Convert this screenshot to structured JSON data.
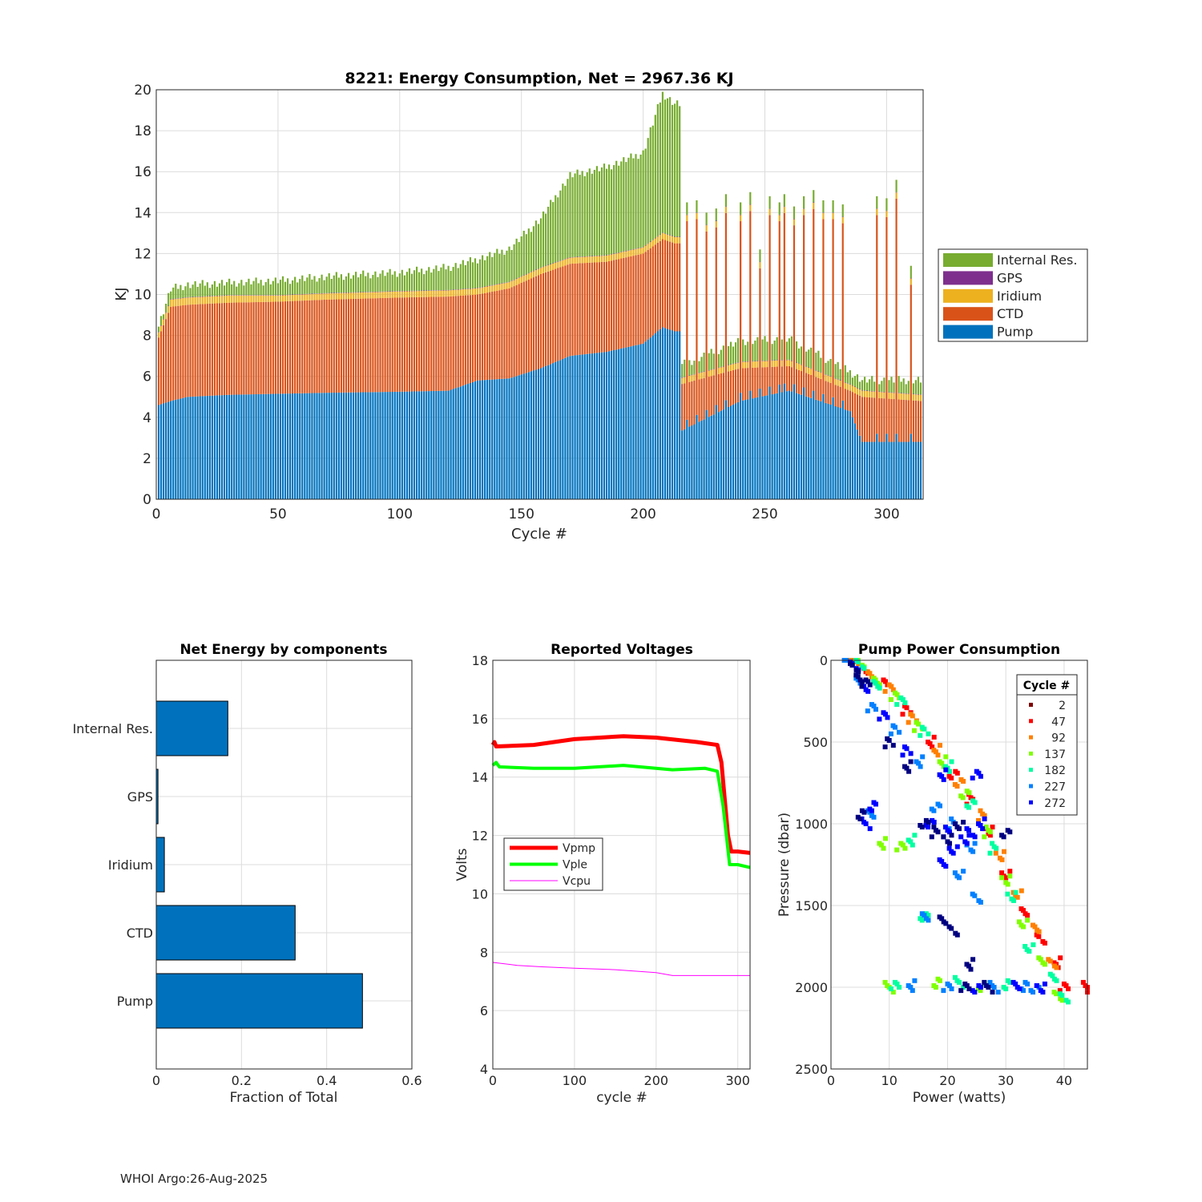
{
  "footer": "WHOI Argo:26-Aug-2025",
  "chart_data": [
    {
      "id": "energy",
      "type": "bar",
      "stacked": true,
      "title": "8221: Energy Consumption,  Net = 2967.36 KJ",
      "xlabel": "Cycle #",
      "ylabel": "KJ",
      "xlim": [
        0,
        315
      ],
      "ylim": [
        0,
        20
      ],
      "xticks": [
        0,
        50,
        100,
        150,
        200,
        250,
        300
      ],
      "yticks": [
        0,
        2,
        4,
        6,
        8,
        10,
        12,
        14,
        16,
        18,
        20
      ],
      "grid": true,
      "legend_position": "outside-right",
      "legend": [
        "Internal Res.",
        "GPS",
        "Iridium",
        "CTD",
        "Pump"
      ],
      "colors": {
        "Pump": "#0072BD",
        "CTD": "#D95319",
        "Iridium": "#EDB120",
        "GPS": "#7E2F8E",
        "Internal Res.": "#77AC30"
      },
      "stack_order": [
        "Pump",
        "CTD",
        "Iridium",
        "GPS",
        "Internal Res."
      ],
      "profile_points": [
        {
          "cycle": 1,
          "Pump": 4.6,
          "CTD": 3.3,
          "Iridium": 0.25,
          "GPS": 0.02,
          "Internal": 0.3
        },
        {
          "cycle": 6,
          "Pump": 4.8,
          "CTD": 4.6,
          "Iridium": 0.35,
          "GPS": 0.02,
          "Internal": 0.5
        },
        {
          "cycle": 13,
          "Pump": 5.0,
          "CTD": 4.5,
          "Iridium": 0.35,
          "GPS": 0.02,
          "Internal": 0.6
        },
        {
          "cycle": 30,
          "Pump": 5.1,
          "CTD": 4.5,
          "Iridium": 0.35,
          "GPS": 0.02,
          "Internal": 0.6
        },
        {
          "cycle": 50,
          "Pump": 5.15,
          "CTD": 4.5,
          "Iridium": 0.3,
          "GPS": 0.02,
          "Internal": 0.7
        },
        {
          "cycle": 70,
          "Pump": 5.2,
          "CTD": 4.55,
          "Iridium": 0.3,
          "GPS": 0.02,
          "Internal": 0.8
        },
        {
          "cycle": 100,
          "Pump": 5.25,
          "CTD": 4.6,
          "Iridium": 0.3,
          "GPS": 0.02,
          "Internal": 0.9
        },
        {
          "cycle": 120,
          "Pump": 5.3,
          "CTD": 4.6,
          "Iridium": 0.3,
          "GPS": 0.02,
          "Internal": 1.1
        },
        {
          "cycle": 132,
          "Pump": 5.8,
          "CTD": 4.2,
          "Iridium": 0.3,
          "GPS": 0.02,
          "Internal": 1.4
        },
        {
          "cycle": 145,
          "Pump": 5.9,
          "CTD": 4.4,
          "Iridium": 0.3,
          "GPS": 0.02,
          "Internal": 1.6
        },
        {
          "cycle": 158,
          "Pump": 6.4,
          "CTD": 4.6,
          "Iridium": 0.3,
          "GPS": 0.02,
          "Internal": 2.4
        },
        {
          "cycle": 170,
          "Pump": 7.0,
          "CTD": 4.5,
          "Iridium": 0.3,
          "GPS": 0.02,
          "Internal": 4.0
        },
        {
          "cycle": 185,
          "Pump": 7.2,
          "CTD": 4.4,
          "Iridium": 0.3,
          "GPS": 0.02,
          "Internal": 4.3
        },
        {
          "cycle": 200,
          "Pump": 7.6,
          "CTD": 4.4,
          "Iridium": 0.3,
          "GPS": 0.02,
          "Internal": 4.6
        },
        {
          "cycle": 208,
          "Pump": 8.4,
          "CTD": 4.3,
          "Iridium": 0.3,
          "GPS": 0.02,
          "Internal": 6.8
        },
        {
          "cycle": 213,
          "Pump": 8.2,
          "CTD": 4.3,
          "Iridium": 0.3,
          "GPS": 0.02,
          "Internal": 6.5
        },
        {
          "cycle": 215,
          "Pump": 3.3,
          "CTD": 2.3,
          "Iridium": 0.3,
          "GPS": 0.02,
          "Internal": 0.6
        },
        {
          "cycle": 240,
          "Pump": 4.8,
          "CTD": 1.6,
          "Iridium": 0.3,
          "GPS": 0.02,
          "Internal": 1.0
        },
        {
          "cycle": 260,
          "Pump": 5.3,
          "CTD": 1.2,
          "Iridium": 0.3,
          "GPS": 0.02,
          "Internal": 1.0
        },
        {
          "cycle": 285,
          "Pump": 4.3,
          "CTD": 1.0,
          "Iridium": 0.3,
          "GPS": 0.02,
          "Internal": 0.6
        },
        {
          "cycle": 290,
          "Pump": 2.8,
          "CTD": 2.2,
          "Iridium": 0.3,
          "GPS": 0.02,
          "Internal": 0.5
        },
        {
          "cycle": 314,
          "Pump": 2.8,
          "CTD": 2.0,
          "Iridium": 0.3,
          "GPS": 0.02,
          "Internal": 0.7
        }
      ],
      "long_profile_cycles": [
        218,
        222,
        226,
        230,
        234,
        240,
        244,
        248,
        252,
        256,
        258,
        262,
        266,
        270,
        274,
        278,
        282,
        296,
        300,
        304,
        310
      ],
      "long_profile_totals": [
        14.5,
        14.6,
        14.0,
        14.2,
        14.9,
        14.5,
        15.0,
        12.2,
        14.8,
        14.5,
        14.9,
        14.3,
        14.8,
        15.1,
        14.6,
        14.6,
        14.4,
        14.8,
        14.7,
        15.6,
        11.4
      ]
    },
    {
      "id": "components",
      "type": "barh",
      "title": "Net Energy by components",
      "xlabel": "Fraction of Total",
      "xlim": [
        0,
        0.6
      ],
      "xticks": [
        0,
        0.2,
        0.4,
        0.6
      ],
      "xticklabels": [
        "0",
        "0.2",
        "0.4",
        "0.6"
      ],
      "categories": [
        "Internal Res.",
        "GPS",
        "Iridium",
        "CTD",
        "Pump"
      ],
      "values": [
        0.168,
        0.004,
        0.019,
        0.326,
        0.484
      ],
      "color": "#0072BD",
      "grid": true
    },
    {
      "id": "voltages",
      "type": "line",
      "title": "Reported Voltages",
      "xlabel": "cycle #",
      "ylabel": "Volts",
      "xlim": [
        0,
        315
      ],
      "ylim": [
        4,
        18
      ],
      "xticks": [
        0,
        100,
        200,
        300
      ],
      "yticks": [
        4,
        6,
        8,
        10,
        12,
        14,
        16,
        18
      ],
      "grid": true,
      "legend_position": "middle-left",
      "series": [
        {
          "name": "Vpmp",
          "color": "#FF0000",
          "width": 5,
          "x": [
            0,
            2,
            4,
            50,
            100,
            160,
            200,
            250,
            275,
            280,
            288,
            292,
            300,
            315
          ],
          "y": [
            15.1,
            15.2,
            15.05,
            15.1,
            15.3,
            15.4,
            15.35,
            15.2,
            15.1,
            14.5,
            12.0,
            11.45,
            11.45,
            11.4
          ]
        },
        {
          "name": "Vple",
          "color": "#00FF00",
          "width": 4,
          "x": [
            0,
            4,
            8,
            50,
            100,
            160,
            220,
            260,
            275,
            282,
            290,
            300,
            315
          ],
          "y": [
            14.4,
            14.5,
            14.35,
            14.3,
            14.3,
            14.4,
            14.25,
            14.3,
            14.2,
            13.0,
            11.0,
            11.0,
            10.9
          ]
        },
        {
          "name": "Vcpu",
          "color": "#FF00FF",
          "width": 1,
          "x": [
            0,
            30,
            60,
            100,
            150,
            200,
            220,
            250,
            315
          ],
          "y": [
            7.65,
            7.55,
            7.5,
            7.45,
            7.4,
            7.3,
            7.2,
            7.2,
            7.2
          ]
        }
      ]
    },
    {
      "id": "pump",
      "type": "scatter",
      "title": "Pump Power Consumption",
      "xlabel": "Power (watts)",
      "ylabel": "Pressure (dbar)",
      "xlim": [
        0,
        44
      ],
      "ylim": [
        0,
        2500
      ],
      "y_reversed": true,
      "xticks": [
        0,
        10,
        20,
        30,
        40
      ],
      "yticks": [
        0,
        500,
        1000,
        1500,
        2000,
        2500
      ],
      "grid": true,
      "legend_title": "Cycle #",
      "legend_position": "top-right",
      "legend_entries": [
        "2",
        "47",
        "92",
        "137",
        "182",
        "227",
        "272"
      ],
      "legend_colors": [
        "#800000",
        "#FF0000",
        "#FF8000",
        "#80FF00",
        "#00FFA0",
        "#0080FF",
        "#0000FF"
      ],
      "clusters": [
        {
          "color": "#FF0000",
          "pts": [
            [
              3,
              0
            ],
            [
              6,
              50
            ],
            [
              9,
              150
            ],
            [
              13,
              300
            ],
            [
              17,
              500
            ],
            [
              21,
              700
            ],
            [
              24,
              850
            ],
            [
              27,
              1050
            ],
            [
              30,
              1300
            ],
            [
              33,
              1550
            ],
            [
              36,
              1700
            ],
            [
              39,
              1850
            ],
            [
              40,
              2000
            ],
            [
              44,
              2000
            ]
          ]
        },
        {
          "color": "#FF8000",
          "pts": [
            [
              4,
              0
            ],
            [
              7,
              80
            ],
            [
              10,
              180
            ],
            [
              14,
              350
            ],
            [
              18,
              550
            ],
            [
              22,
              750
            ],
            [
              26,
              950
            ],
            [
              29,
              1200
            ],
            [
              32,
              1420
            ],
            [
              35,
              1650
            ],
            [
              38,
              1850
            ]
          ]
        },
        {
          "color": "#80FF00",
          "pts": [
            [
              5,
              20
            ],
            [
              8,
              120
            ],
            [
              11,
              230
            ],
            [
              15,
              400
            ],
            [
              19,
              620
            ],
            [
              23,
              820
            ],
            [
              27,
              1050
            ],
            [
              30,
              1350
            ],
            [
              33,
              1600
            ],
            [
              36,
              1850
            ],
            [
              39,
              2050
            ],
            [
              9,
              1120
            ],
            [
              12,
              1140
            ],
            [
              10,
              2000
            ],
            [
              18,
              1980
            ],
            [
              26,
              1990
            ]
          ]
        },
        {
          "color": "#00FFA0",
          "pts": [
            [
              5,
              30
            ],
            [
              8,
              140
            ],
            [
              12,
              260
            ],
            [
              16,
              430
            ],
            [
              20,
              650
            ],
            [
              24,
              880
            ],
            [
              28,
              1150
            ],
            [
              31,
              1450
            ],
            [
              34,
              1750
            ],
            [
              38,
              1950
            ],
            [
              40,
              2060
            ],
            [
              14,
              1100
            ],
            [
              11,
              1990
            ],
            [
              22,
              1970
            ],
            [
              30,
              1990
            ],
            [
              16,
              1560
            ]
          ]
        },
        {
          "color": "#0080FF",
          "pts": [
            [
              3,
              10
            ],
            [
              5,
              120
            ],
            [
              7,
              300
            ],
            [
              11,
              420
            ],
            [
              15,
              620
            ],
            [
              18,
              900
            ],
            [
              21,
              1000
            ],
            [
              24,
              1150
            ],
            [
              22,
              1300
            ],
            [
              16,
              1580
            ],
            [
              25,
              1450
            ],
            [
              14,
              1990
            ],
            [
              20,
              2000
            ],
            [
              28,
              2000
            ],
            [
              33,
              2000
            ],
            [
              35,
              2000
            ],
            [
              7,
              950
            ]
          ]
        },
        {
          "color": "#0000FF",
          "pts": [
            [
              4,
              40
            ],
            [
              6,
              160
            ],
            [
              9,
              350
            ],
            [
              13,
              550
            ],
            [
              19,
              700
            ],
            [
              17,
              1000
            ],
            [
              20,
              1050
            ],
            [
              23,
              1100
            ],
            [
              21,
              1150
            ],
            [
              19,
              1250
            ],
            [
              24,
              1050
            ],
            [
              26,
              1000
            ],
            [
              25,
              700
            ],
            [
              6,
              1000
            ],
            [
              7,
              900
            ],
            [
              25,
              2000
            ],
            [
              32,
              2000
            ],
            [
              36,
              2000
            ]
          ]
        },
        {
          "color": "#000080",
          "pts": [
            [
              4,
              50
            ],
            [
              5,
              100
            ],
            [
              6,
              150
            ],
            [
              10,
              500
            ],
            [
              13,
              650
            ],
            [
              16,
              1000
            ],
            [
              18,
              1050
            ],
            [
              20,
              1100
            ],
            [
              22,
              1000
            ],
            [
              19,
              1600
            ],
            [
              21,
              1650
            ],
            [
              24,
              1860
            ],
            [
              23,
              2000
            ],
            [
              27,
              2000
            ],
            [
              5,
              950
            ],
            [
              30,
              1050
            ]
          ]
        }
      ]
    }
  ]
}
